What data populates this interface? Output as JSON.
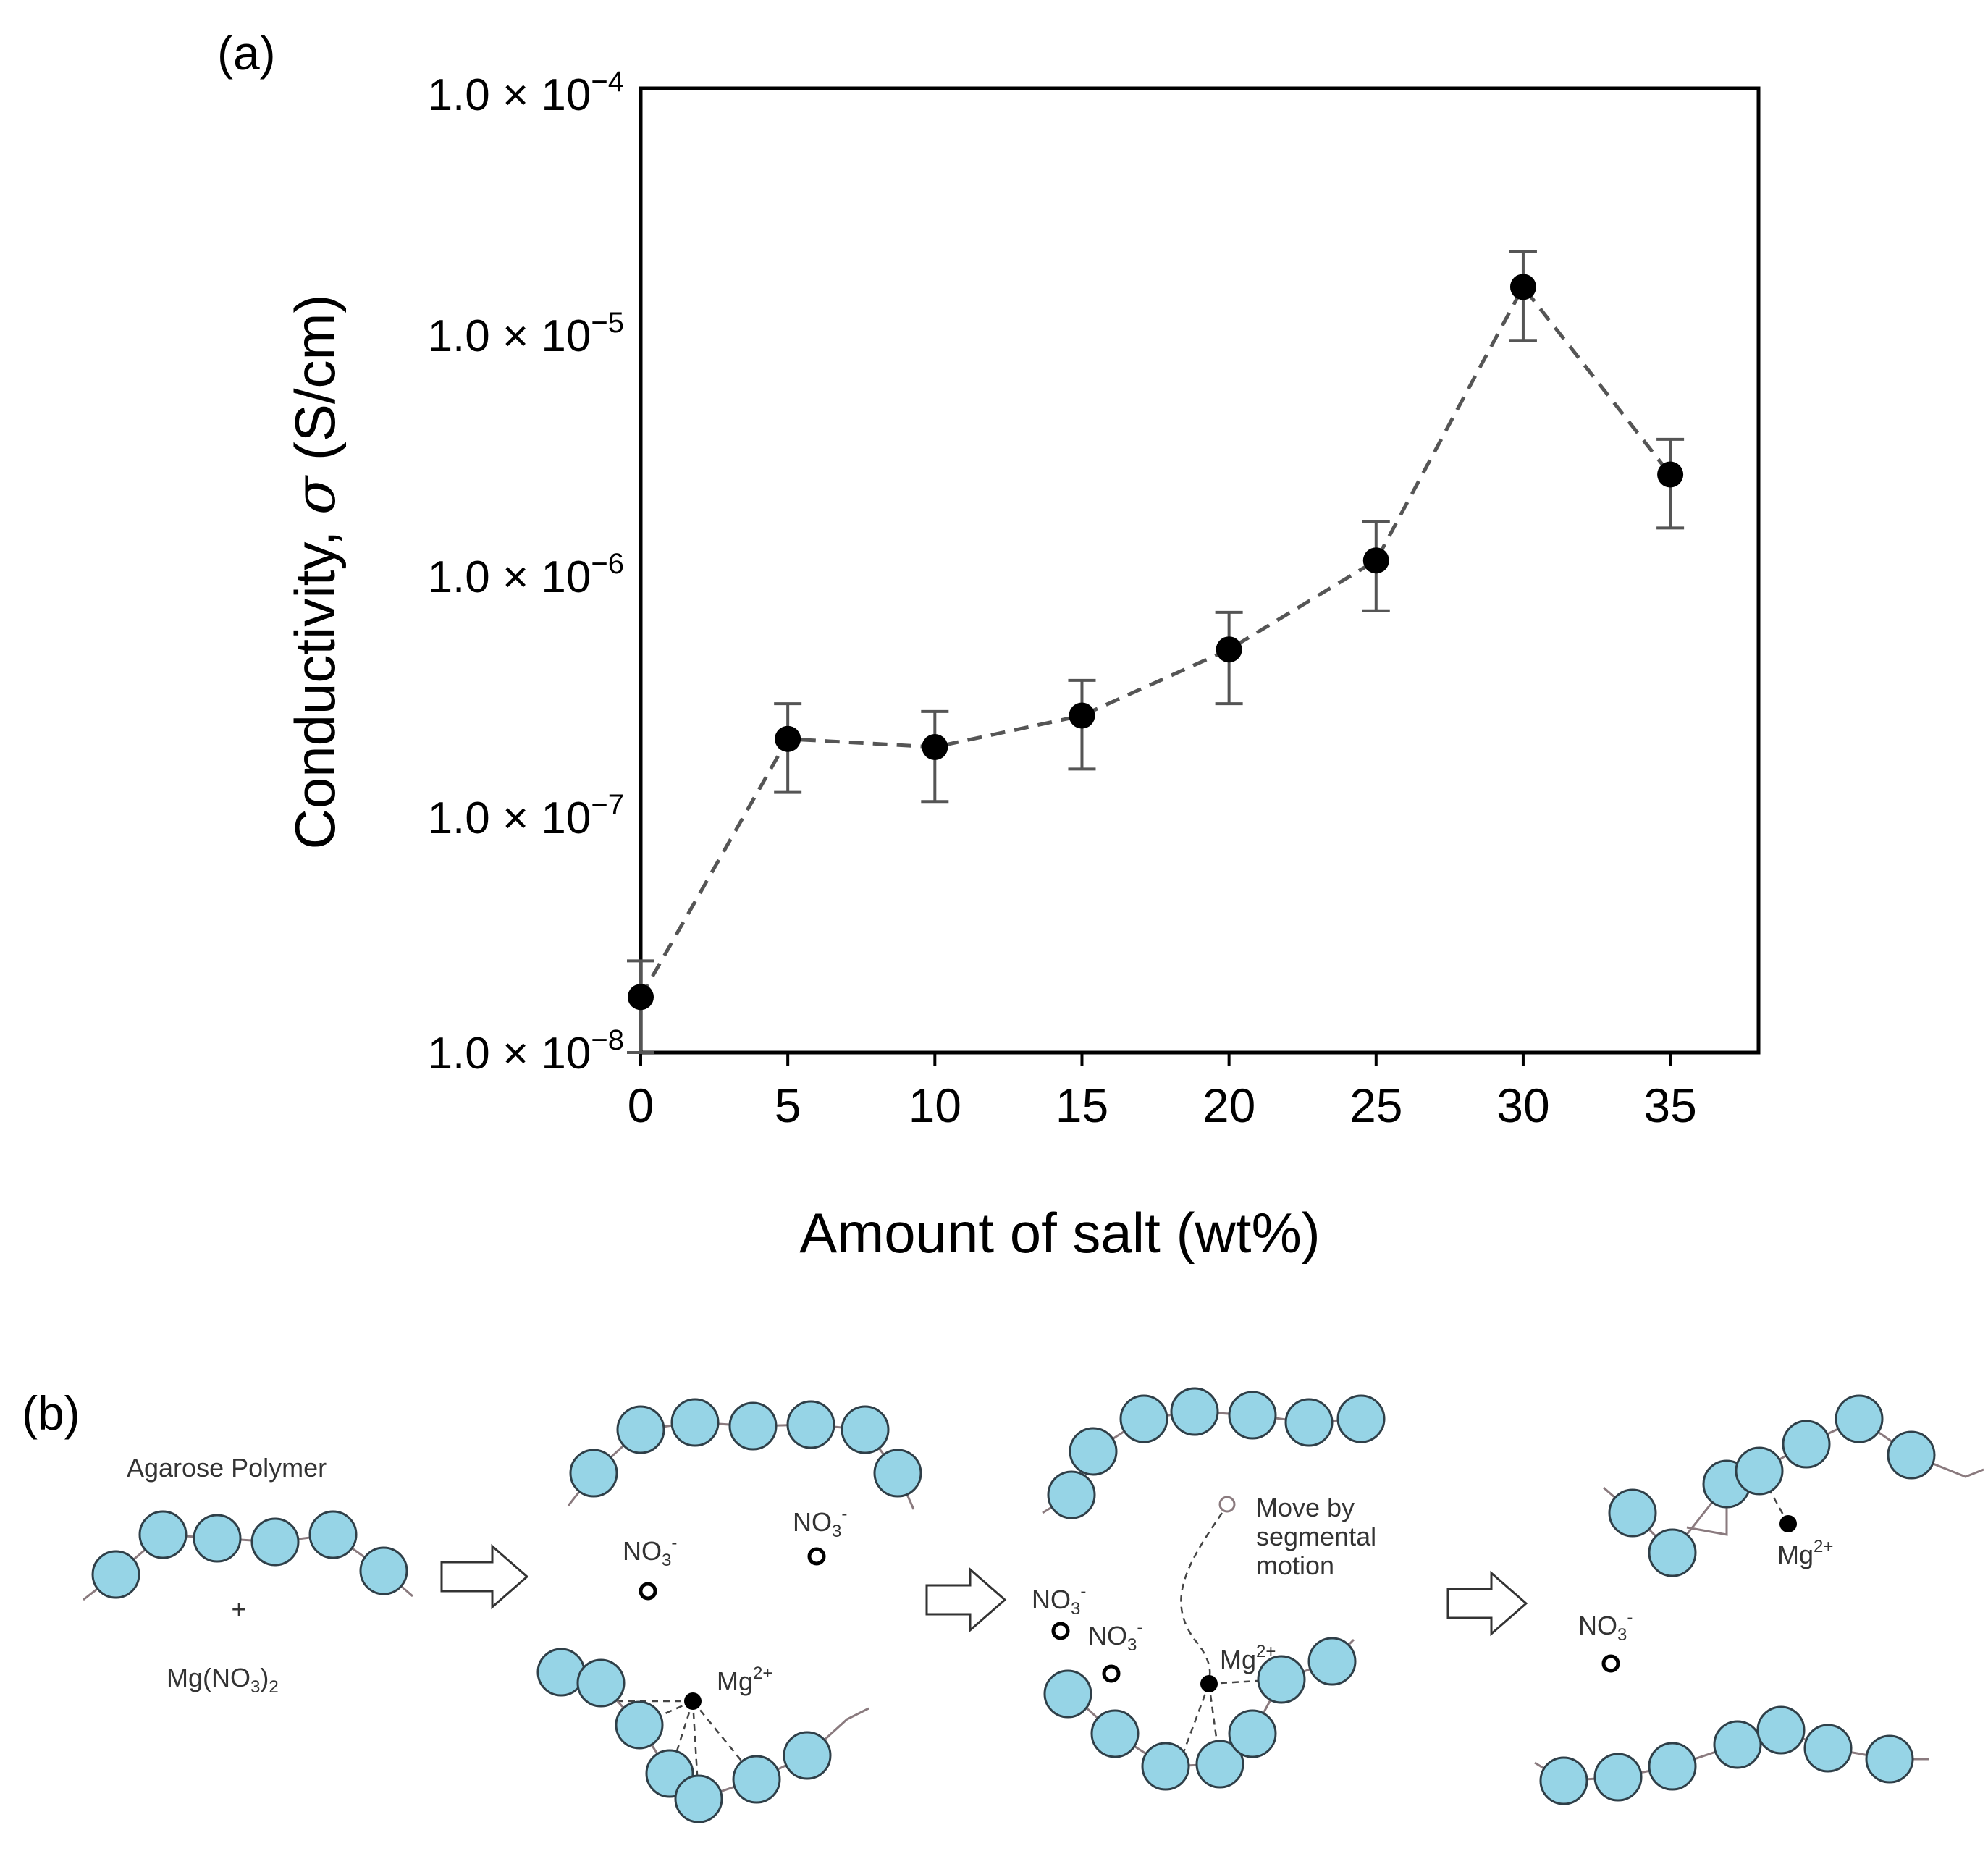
{
  "panel_a": {
    "label": "(a)",
    "y_tick_labels": [
      {
        "mantissa": "1.0 × 10",
        "exp": "−4"
      },
      {
        "mantissa": "1.0 × 10",
        "exp": "−5"
      },
      {
        "mantissa": "1.0 × 10",
        "exp": "−6"
      },
      {
        "mantissa": "1.0 × 10",
        "exp": "−7"
      },
      {
        "mantissa": "1.0 × 10",
        "exp": "−8"
      }
    ]
  },
  "chart_data": {
    "type": "scatter",
    "title": "",
    "xlabel": "Amount of salt (wt%)",
    "ylabel_prefix": "Conductivity, ",
    "ylabel_symbol": "σ",
    "ylabel_suffix": " (S/cm)",
    "yscale": "log",
    "xlim": [
      0,
      38
    ],
    "ylim": [
      1e-08,
      0.0001
    ],
    "x_ticks": [
      0,
      5,
      10,
      15,
      20,
      25,
      30,
      35
    ],
    "x_tick_labels": [
      "0",
      "5",
      "10",
      "15",
      "20",
      "25",
      "30",
      "35"
    ],
    "line_style": "dashed",
    "series": [
      {
        "name": "conductivity",
        "x": [
          0,
          5,
          10,
          15,
          20,
          25,
          30,
          35
        ],
        "y": [
          1.7e-08,
          2e-07,
          1.85e-07,
          2.5e-07,
          4.7e-07,
          1.1e-06,
          1.5e-05,
          2.5e-06
        ],
        "err_low": [
          1e-08,
          1.2e-07,
          1.1e-07,
          1.5e-07,
          2.8e-07,
          6.8e-07,
          9e-06,
          1.5e-06
        ],
        "err_high": [
          2.4e-08,
          2.8e-07,
          2.6e-07,
          3.5e-07,
          6.7e-07,
          1.6e-06,
          2.1e-05,
          3.5e-06
        ]
      }
    ]
  },
  "panel_b": {
    "label": "(b)",
    "step1": {
      "polymer_label": "Agarose Polymer",
      "plus": "+",
      "salt_label": "Mg(NO",
      "salt_sub1": "3",
      "salt_close": ")",
      "salt_sub2": "2"
    },
    "ion_no3": {
      "base": "NO",
      "sub": "3",
      "sup": "-"
    },
    "ion_mg": {
      "base": "Mg",
      "sup": "2+"
    },
    "step3_note": [
      "Move by",
      "segmental",
      "motion"
    ],
    "colors": {
      "bead": "#96d4e6",
      "chain": "#8a7a7e",
      "arrow": "#333333"
    }
  }
}
